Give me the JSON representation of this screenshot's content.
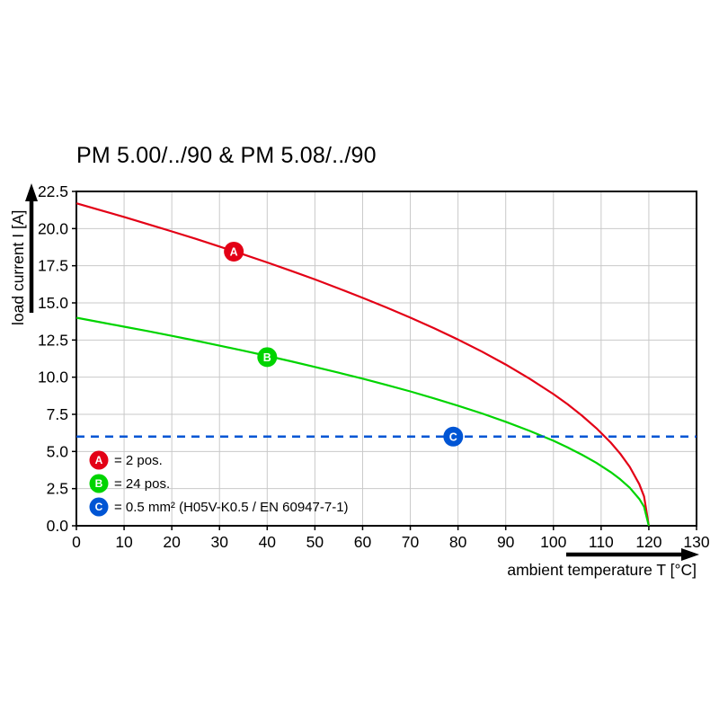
{
  "title": "PM 5.00/../90 & PM 5.08/../90",
  "axes": {
    "x_label": "ambient temperature T [°C]",
    "y_label": "load current I [A]",
    "x_ticks": [
      0,
      10,
      20,
      30,
      40,
      50,
      60,
      70,
      80,
      90,
      100,
      110,
      120,
      130
    ],
    "y_ticks": [
      "0.0",
      "2.5",
      "5.0",
      "7.5",
      "10.0",
      "12.5",
      "15.0",
      "17.5",
      "20.0",
      "22.5"
    ]
  },
  "chart_data": {
    "type": "line",
    "title": "PM 5.00/../90 & PM 5.08/../90",
    "xlabel": "ambient temperature T [°C]",
    "ylabel": "load current I [A]",
    "xlim": [
      0,
      130
    ],
    "ylim": [
      0,
      22.5
    ],
    "grid": true,
    "legend_position": "inside bottom-left",
    "series": [
      {
        "name": "A",
        "label": "2 pos.",
        "color": "#e30016",
        "x": [
          0,
          5,
          10,
          15,
          20,
          25,
          30,
          35,
          40,
          45,
          50,
          55,
          60,
          65,
          70,
          75,
          80,
          85,
          90,
          95,
          100,
          103,
          106,
          109,
          112,
          114,
          116,
          118,
          119,
          120
        ],
        "y": [
          21.7,
          21.24,
          20.78,
          20.3,
          19.81,
          19.31,
          18.79,
          18.26,
          17.72,
          17.16,
          16.58,
          15.97,
          15.34,
          14.69,
          14.01,
          13.29,
          12.53,
          11.72,
          10.85,
          9.9,
          8.86,
          8.17,
          7.41,
          6.57,
          5.6,
          4.85,
          3.96,
          2.8,
          1.98,
          0
        ],
        "marker": {
          "x": 33,
          "y": 18.45
        }
      },
      {
        "name": "B",
        "label": "24 pos.",
        "color": "#00d400",
        "x": [
          0,
          5,
          10,
          15,
          20,
          25,
          30,
          35,
          40,
          45,
          50,
          55,
          60,
          65,
          70,
          75,
          80,
          85,
          90,
          95,
          100,
          103,
          106,
          109,
          112,
          114,
          116,
          118,
          119,
          120
        ],
        "y": [
          14,
          13.7,
          13.4,
          13.1,
          12.78,
          12.46,
          12.12,
          11.78,
          11.43,
          11.07,
          10.69,
          10.3,
          9.9,
          9.48,
          9.04,
          8.57,
          8.08,
          7.56,
          7,
          6.39,
          5.72,
          5.27,
          4.78,
          4.24,
          3.61,
          3.13,
          2.56,
          1.81,
          1.28,
          0
        ],
        "marker": {
          "x": 40,
          "y": 11.35
        }
      },
      {
        "name": "C",
        "label": "0.5 mm² (H05V-K0.5 / EN 60947-7-1)",
        "color": "#0055d4",
        "style": "dashed-horizontal",
        "y_value": 6,
        "marker": {
          "x": 79,
          "y": 6
        }
      }
    ],
    "legend": [
      {
        "letter": "A",
        "color": "#e30016",
        "text": "= 2 pos."
      },
      {
        "letter": "B",
        "color": "#00d400",
        "text": "= 24 pos."
      },
      {
        "letter": "C",
        "color": "#0055d4",
        "text": "= 0.5 mm² (H05V-K0.5 / EN 60947-7-1)"
      }
    ]
  }
}
